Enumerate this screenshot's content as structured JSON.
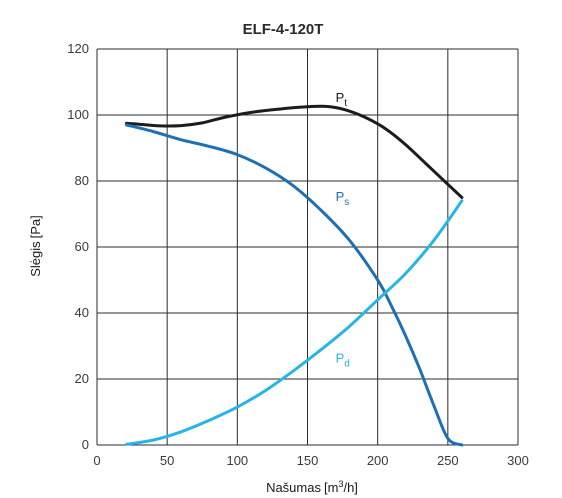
{
  "chart_data": {
    "type": "line",
    "title": "ELF-4-120T",
    "xlabel": {
      "main": "Našumas",
      "unit_open": "[m",
      "unit_sup": "3",
      "unit_close": "/h]"
    },
    "ylabel": {
      "main": "Slėgis",
      "unit": "[Pa]"
    },
    "xlim": [
      0,
      300
    ],
    "ylim": [
      0,
      120
    ],
    "xticks": [
      0,
      50,
      100,
      150,
      200,
      250,
      300
    ],
    "yticks": [
      0,
      20,
      40,
      60,
      80,
      100,
      120
    ],
    "grid": true,
    "series": [
      {
        "name": "Pt",
        "base": "P",
        "sub": "t",
        "color": "#1c1c1c",
        "label_at": [
          170,
          104
        ],
        "x": [
          21,
          30,
          45,
          60,
          75,
          90,
          110,
          130,
          150,
          163,
          175,
          190,
          205,
          220,
          235,
          250,
          260
        ],
        "y": [
          97.5,
          97.2,
          96.7,
          96.8,
          97.6,
          99.2,
          100.8,
          101.8,
          102.5,
          102.6,
          101.8,
          99.5,
          96,
          91,
          85,
          79,
          75
        ]
      },
      {
        "name": "Ps",
        "base": "P",
        "sub": "s",
        "color": "#1f6fb5",
        "label_at": [
          170,
          74
        ],
        "x": [
          21,
          40,
          60,
          80,
          100,
          120,
          140,
          160,
          180,
          200,
          210,
          220,
          230,
          240,
          250,
          260
        ],
        "y": [
          97,
          95,
          92.5,
          90.5,
          88,
          84,
          78.5,
          71,
          62,
          50,
          42,
          33,
          23,
          12,
          2,
          0
        ]
      },
      {
        "name": "Pd",
        "base": "P",
        "sub": "d",
        "color": "#28b4e6",
        "label_at": [
          170,
          25
        ],
        "x": [
          21,
          40,
          60,
          80,
          100,
          120,
          140,
          160,
          180,
          200,
          220,
          240,
          260
        ],
        "y": [
          0.2,
          1.5,
          4,
          7.5,
          11.5,
          16.5,
          22.5,
          29,
          36,
          44,
          52,
          62,
          74
        ]
      }
    ]
  }
}
